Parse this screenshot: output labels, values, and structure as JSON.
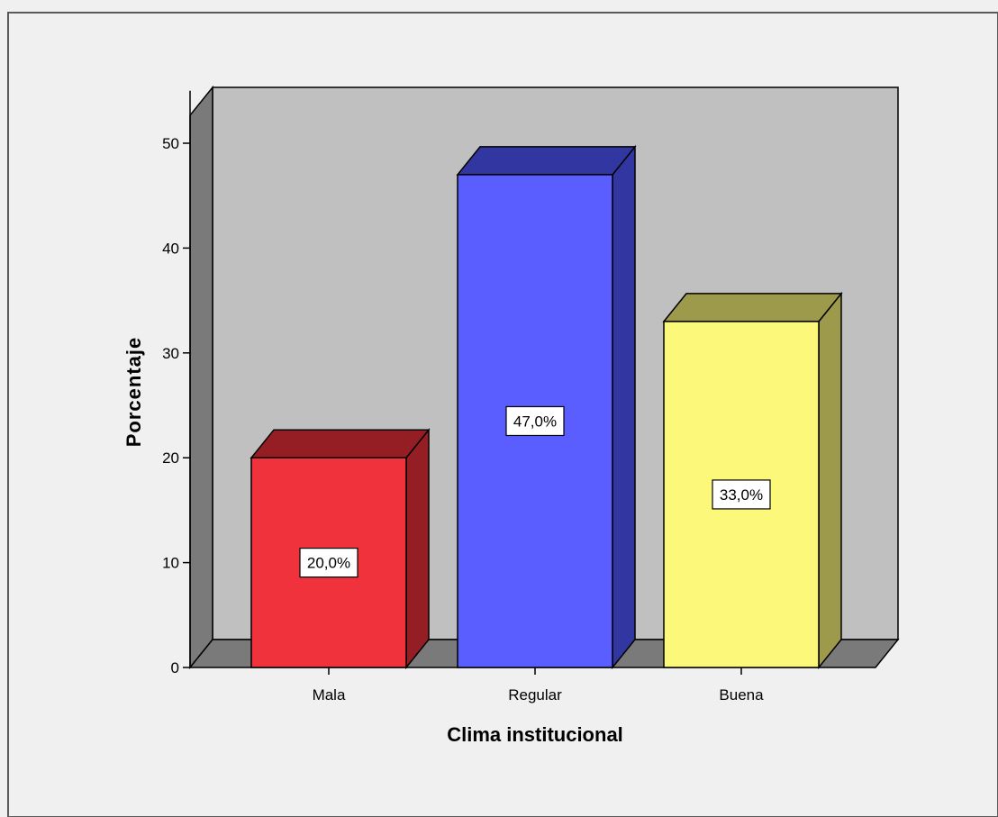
{
  "chart_data": {
    "type": "bar",
    "title": "",
    "xlabel": "Clima institucional",
    "ylabel": "Porcentaje",
    "categories": [
      "Mala",
      "Regular",
      "Buena"
    ],
    "values": [
      20.0,
      47.0,
      33.0
    ],
    "data_labels": [
      "20,0%",
      "47,0%",
      "33,0%"
    ],
    "yticks": [
      0,
      10,
      20,
      30,
      40,
      50
    ],
    "ylim": [
      0,
      55
    ],
    "grid": false,
    "legend": "none",
    "bar_colors": [
      {
        "front": "#f0323c",
        "side": "#941e24",
        "top": "#941e24"
      },
      {
        "front": "#5a5eff",
        "side": "#3236a0",
        "top": "#3236a0"
      },
      {
        "front": "#fcf87a",
        "side": "#9e9a4c",
        "top": "#9e9a4c"
      }
    ],
    "wall_color": "#c0c0c0",
    "side_wall_color": "#7a7a7a",
    "floor_color": "#7a7a7a",
    "background": "#f0f0f0"
  }
}
